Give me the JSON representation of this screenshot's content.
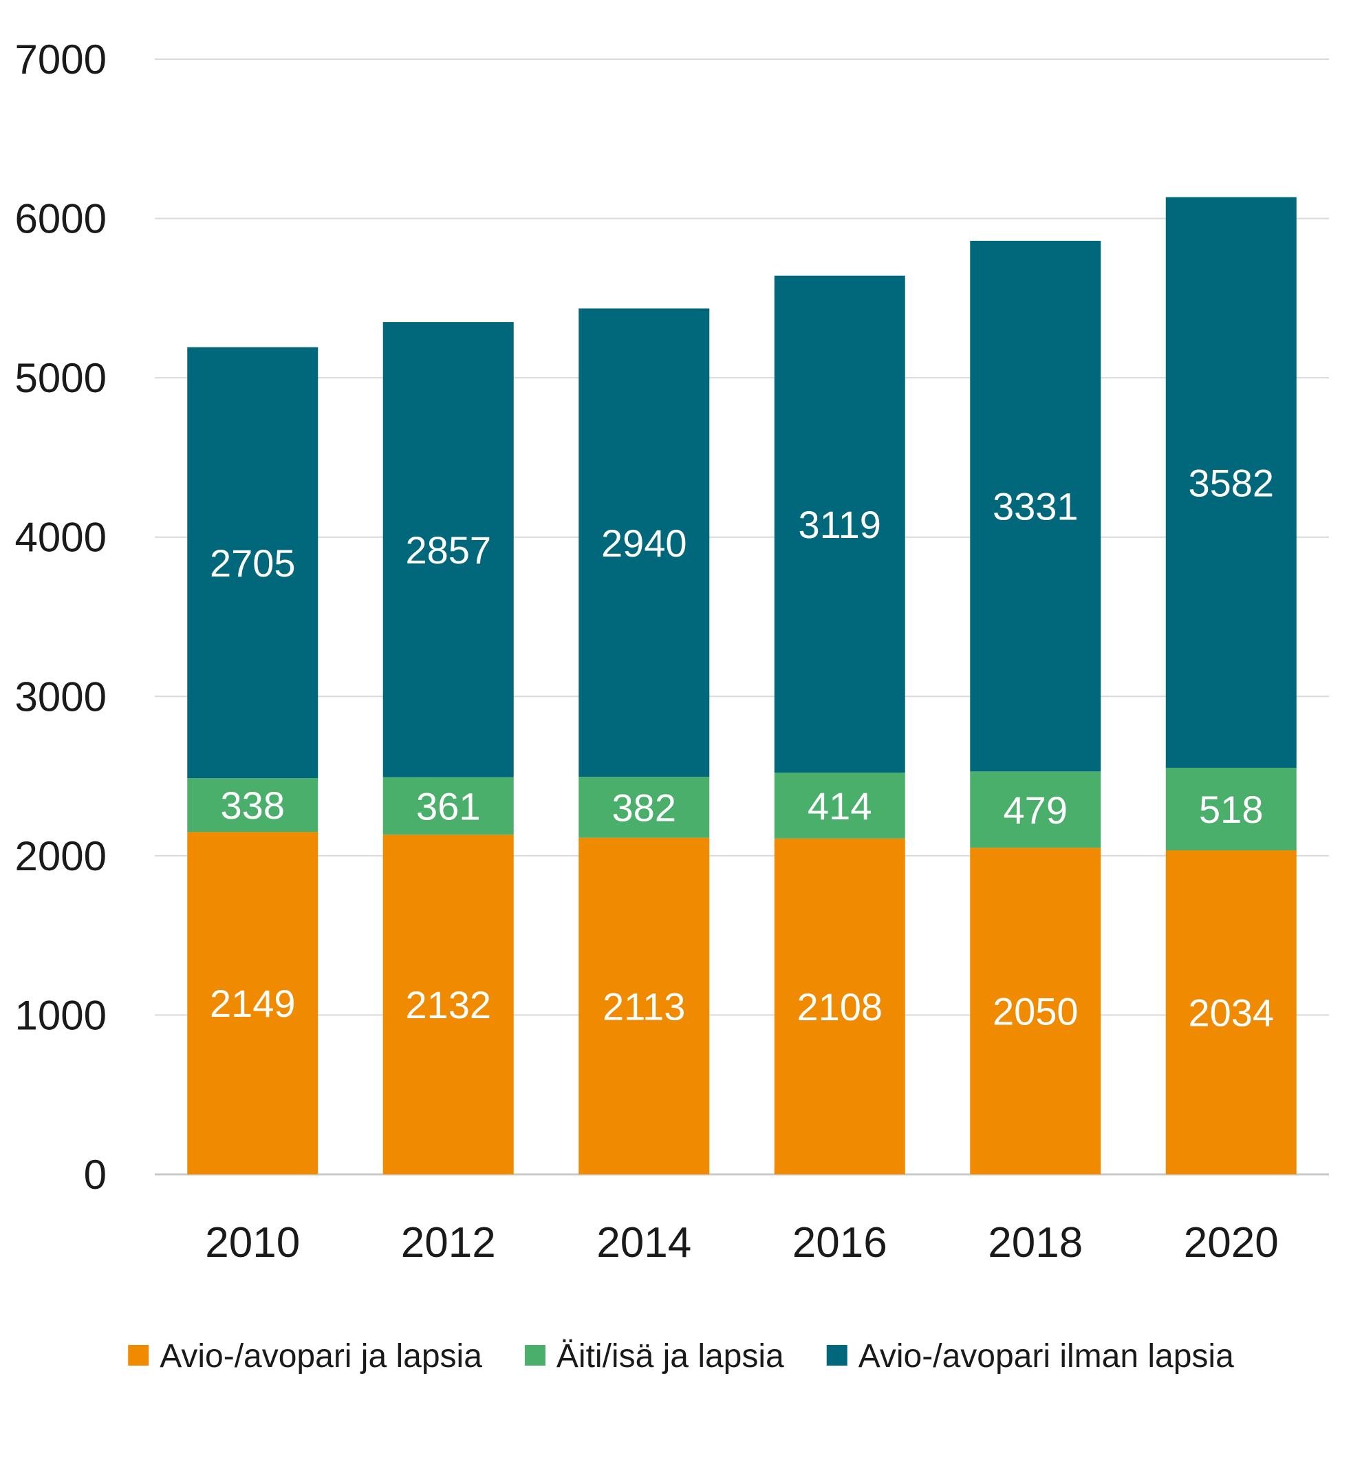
{
  "chart_data": {
    "type": "bar",
    "stacked": true,
    "title": "",
    "xlabel": "",
    "ylabel": "",
    "categories": [
      "2010",
      "2012",
      "2014",
      "2016",
      "2018",
      "2020"
    ],
    "series": [
      {
        "name": "Avio-/avopari ja lapsia",
        "color": "#f08a00",
        "values": [
          2149,
          2132,
          2113,
          2108,
          2050,
          2034
        ]
      },
      {
        "name": "Äiti/isä ja lapsia",
        "color": "#4aaf6a",
        "values": [
          338,
          361,
          382,
          414,
          479,
          518
        ]
      },
      {
        "name": "Avio-/avopari ilman lapsia",
        "color": "#00687a",
        "values": [
          2705,
          2857,
          2940,
          3119,
          3331,
          3582
        ]
      }
    ],
    "ylim": [
      0,
      7000
    ],
    "yticks": [
      0,
      1000,
      2000,
      3000,
      4000,
      5000,
      6000,
      7000
    ],
    "grid": true,
    "data_labels": true,
    "legend_position": "bottom"
  }
}
